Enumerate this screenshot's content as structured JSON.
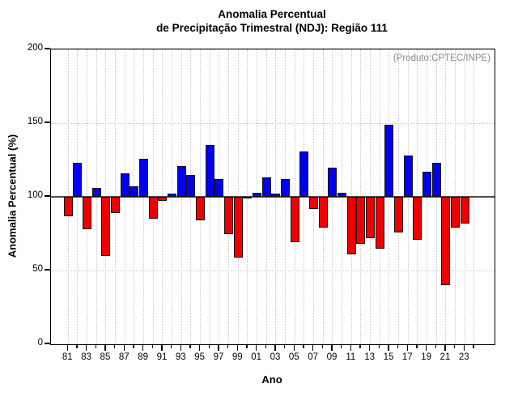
{
  "title": {
    "line1": "Anomalia Percentual",
    "line2": "de Precipitação Trimestral (NDJ): Região 111"
  },
  "annotation": "(Produto:CPTEC/INPE)",
  "chart_data": {
    "type": "bar",
    "title": "Anomalia Percentual de Precipitação Trimestral (NDJ): Região 111",
    "xlabel": "Ano",
    "ylabel": "Anomalia Percentual (%)",
    "ylim": [
      0,
      200
    ],
    "yticks": [
      0,
      50,
      100,
      150,
      200
    ],
    "baseline": 100,
    "grid": "dotted",
    "legend": "none",
    "colors": {
      "above_baseline": "#0000ee",
      "below_baseline": "#ee0000"
    },
    "x_tick_labels": [
      "81",
      "83",
      "85",
      "87",
      "89",
      "91",
      "93",
      "95",
      "97",
      "99",
      "01",
      "03",
      "05",
      "07",
      "09",
      "11",
      "13",
      "15",
      "17",
      "19",
      "21",
      "23"
    ],
    "years": [
      1981,
      1982,
      1983,
      1984,
      1985,
      1986,
      1987,
      1988,
      1989,
      1990,
      1991,
      1992,
      1993,
      1994,
      1995,
      1996,
      1997,
      1998,
      1999,
      2000,
      2001,
      2002,
      2003,
      2004,
      2005,
      2006,
      2007,
      2008,
      2009,
      2010,
      2011,
      2012,
      2013,
      2014,
      2015,
      2016,
      2017,
      2018,
      2019,
      2020,
      2021,
      2022,
      2023
    ],
    "values": [
      87,
      123,
      78,
      106,
      60,
      89,
      116,
      107,
      126,
      85,
      97,
      102,
      121,
      115,
      84,
      135,
      112,
      75,
      59,
      99,
      103,
      113,
      102,
      112,
      69,
      131,
      92,
      79,
      120,
      103,
      61,
      68,
      72,
      65,
      149,
      76,
      128,
      71,
      117,
      123,
      40,
      79,
      82
    ]
  }
}
